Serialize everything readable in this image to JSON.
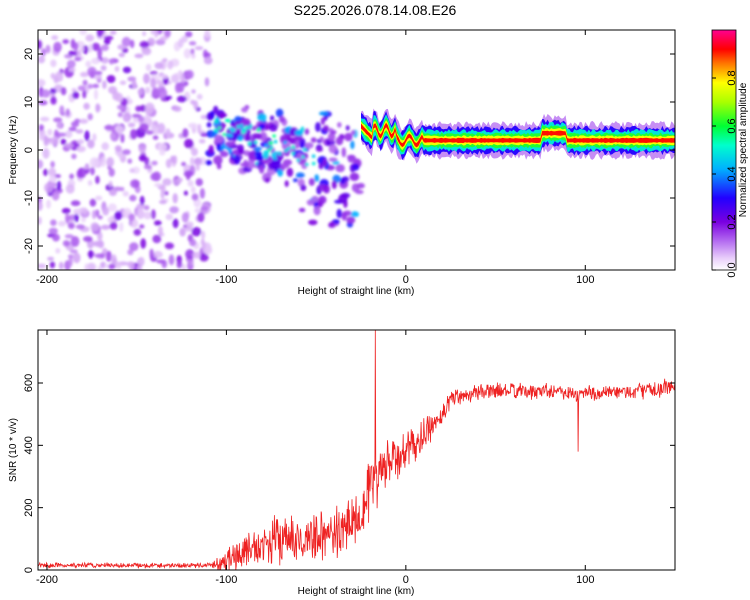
{
  "chart_data": [
    {
      "type": "heatmap",
      "title": "S225.2026.078.14.08.E26",
      "xlabel": "Height of straight line (km)",
      "ylabel": "Frequency (Hz)",
      "xlim": [
        -205,
        150
      ],
      "ylim": [
        -25,
        25
      ],
      "xticks": [
        -200,
        -100,
        0,
        100
      ],
      "yticks": [
        -20,
        -10,
        0,
        10,
        20
      ],
      "colorbar": {
        "label": "Normalized spectral amplitude",
        "range": [
          0,
          1
        ],
        "ticks": [
          "0.0",
          "0.2",
          "0.4",
          "0.6",
          "0.8"
        ],
        "tick_values": [
          0.0,
          0.2,
          0.4,
          0.6,
          0.8
        ],
        "colors": [
          "#ffffff",
          "#dcb8f5",
          "#9f4ff0",
          "#6600cc",
          "#0000ff",
          "#00ccff",
          "#00ff66",
          "#ffff00",
          "#ff0000",
          "#ff00a0"
        ]
      },
      "regions": [
        {
          "name": "noise",
          "x": [
            -205,
            -110
          ],
          "f_range": [
            -25,
            25
          ],
          "amplitude": 0.08
        },
        {
          "name": "transition",
          "x": [
            -110,
            -25
          ],
          "f_range": [
            -16,
            10
          ],
          "amplitude": 0.3
        },
        {
          "name": "carrier",
          "x": [
            -25,
            150
          ],
          "f_center": 2,
          "amplitude": 0.95
        }
      ]
    },
    {
      "type": "line",
      "xlabel": "Height of straight line (km)",
      "ylabel": "SNR (10 * v/v)",
      "xlim": [
        -205,
        150
      ],
      "ylim": [
        0,
        770
      ],
      "xticks": [
        -200,
        -100,
        0,
        100
      ],
      "yticks": [
        0,
        200,
        400,
        600
      ],
      "color": "#ee2222",
      "series": [
        {
          "name": "SNR",
          "x": [
            -205,
            -150,
            -110,
            -100,
            -90,
            -80,
            -70,
            -60,
            -50,
            -40,
            -30,
            -25,
            -20,
            -15,
            -10,
            -5,
            0,
            5,
            10,
            15,
            20,
            25,
            30,
            40,
            50,
            60,
            70,
            80,
            90,
            95,
            100,
            110,
            120,
            130,
            140,
            150
          ],
          "y": [
            15,
            15,
            15,
            30,
            60,
            80,
            100,
            90,
            110,
            110,
            160,
            190,
            270,
            300,
            340,
            360,
            380,
            400,
            430,
            460,
            500,
            550,
            560,
            570,
            575,
            575,
            570,
            580,
            570,
            560,
            570,
            565,
            570,
            575,
            580,
            590
          ],
          "noise_amplitude": [
            10,
            10,
            10,
            45,
            70,
            80,
            90,
            80,
            90,
            100,
            110,
            120,
            130,
            110,
            100,
            90,
            80,
            70,
            60,
            50,
            45,
            40,
            35,
            30,
            30,
            30,
            30,
            30,
            30,
            30,
            30,
            30,
            30,
            30,
            30,
            30
          ],
          "spikes": [
            {
              "x": -17,
              "y": 770
            },
            {
              "x": 96,
              "y": 380
            }
          ]
        }
      ]
    }
  ]
}
